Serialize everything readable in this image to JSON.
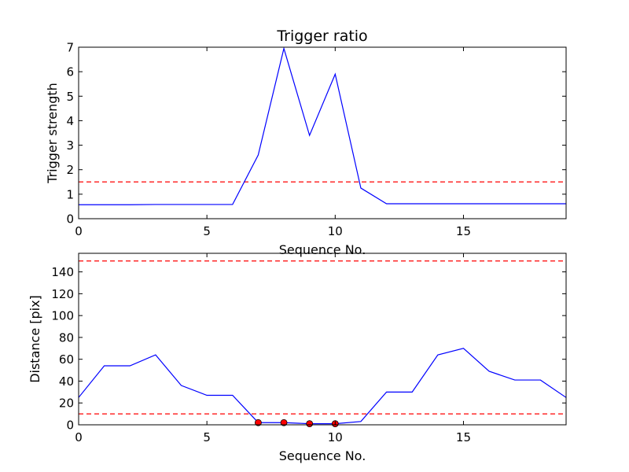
{
  "chart_data": [
    {
      "type": "line",
      "title": "Trigger ratio",
      "xlabel": "Sequence No.",
      "ylabel": "Trigger strength",
      "xlim": [
        0,
        19
      ],
      "ylim": [
        0,
        7
      ],
      "xticks": [
        0,
        5,
        10,
        15
      ],
      "xtick_labels": [
        "0",
        "5",
        "10",
        "15"
      ],
      "yticks": [
        0,
        1,
        2,
        3,
        4,
        5,
        6,
        7
      ],
      "ytick_labels": [
        "0",
        "1",
        "2",
        "3",
        "4",
        "5",
        "6",
        "7"
      ],
      "grid": false,
      "series": [
        {
          "color": "#0000ff",
          "x": [
            0,
            1,
            2,
            3,
            4,
            5,
            6,
            7,
            8,
            9,
            10,
            11,
            12,
            13,
            14,
            15,
            16,
            17,
            18,
            19
          ],
          "values": [
            0.57,
            0.57,
            0.57,
            0.58,
            0.58,
            0.58,
            0.58,
            2.6,
            6.95,
            3.4,
            5.9,
            1.25,
            0.61,
            0.61,
            0.61,
            0.61,
            0.61,
            0.61,
            0.61,
            0.61
          ]
        }
      ],
      "hlines": [
        {
          "y": 1.5,
          "color": "#ff0000",
          "style": "dashed"
        }
      ]
    },
    {
      "type": "line",
      "xlabel": "Sequence No.",
      "ylabel": "Distance [pix]",
      "xlim": [
        0,
        19
      ],
      "ylim": [
        0,
        157
      ],
      "xticks": [
        0,
        5,
        10,
        15
      ],
      "xtick_labels": [
        "0",
        "5",
        "10",
        "15"
      ],
      "yticks": [
        0,
        20,
        40,
        60,
        80,
        100,
        120,
        140
      ],
      "ytick_labels": [
        "0",
        "20",
        "40",
        "60",
        "80",
        "100",
        "120",
        "140"
      ],
      "grid": false,
      "series": [
        {
          "color": "#0000ff",
          "x": [
            0,
            1,
            2,
            3,
            4,
            5,
            6,
            7,
            8,
            9,
            10,
            11,
            12,
            13,
            14,
            15,
            16,
            17,
            18,
            19
          ],
          "values": [
            25,
            54,
            54,
            64,
            36,
            27,
            27,
            2,
            2,
            1,
            1,
            3,
            30,
            30,
            64,
            70,
            49,
            41,
            41,
            25
          ]
        }
      ],
      "markers": {
        "color": "#ff0000",
        "x": [
          7,
          8,
          9,
          10
        ],
        "values": [
          2,
          2,
          1,
          1
        ]
      },
      "hlines": [
        {
          "y": 150,
          "color": "#ff0000",
          "style": "dashed"
        },
        {
          "y": 10,
          "color": "#ff0000",
          "style": "dashed"
        }
      ]
    }
  ]
}
